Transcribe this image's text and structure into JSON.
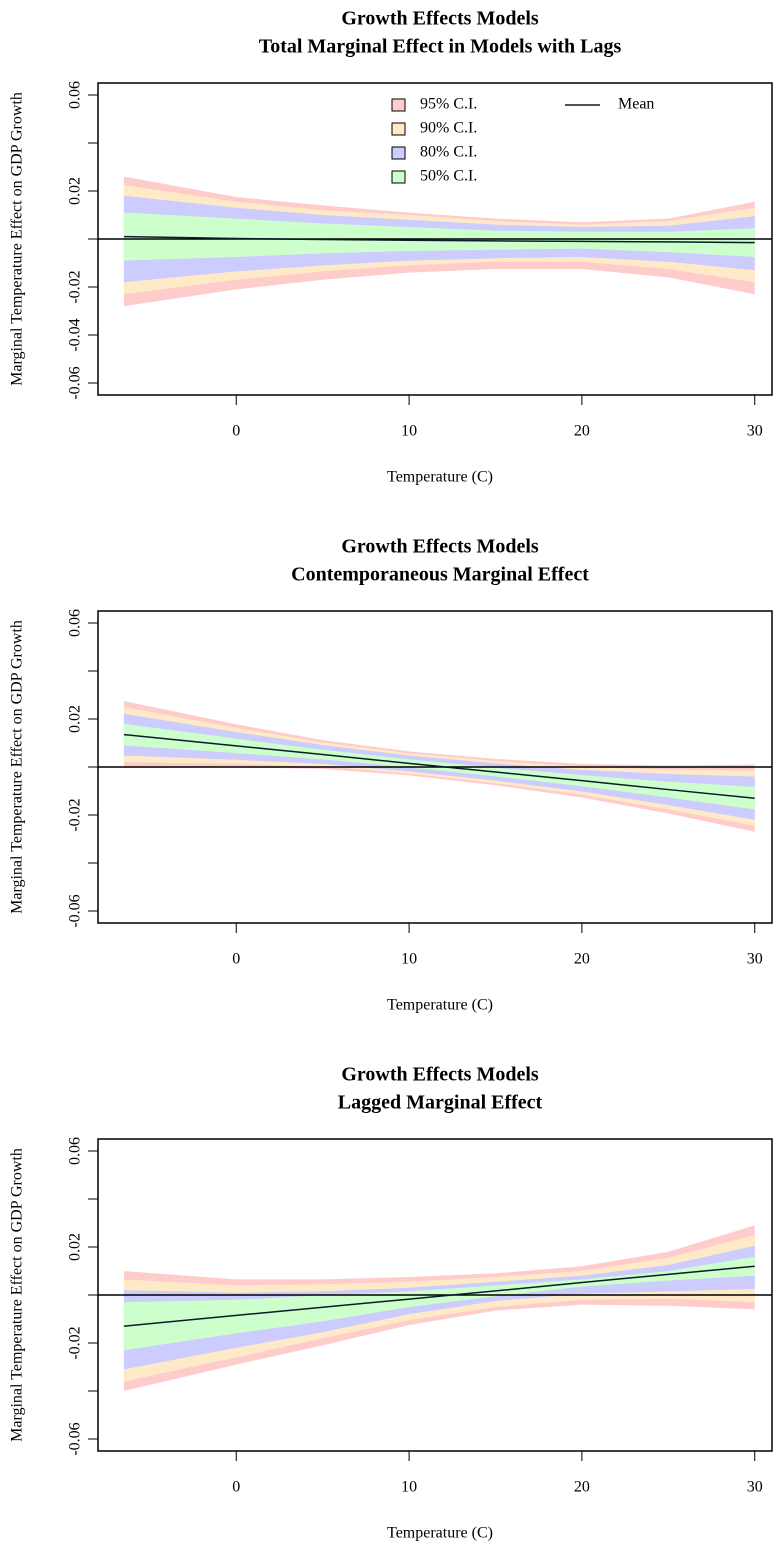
{
  "chart_data": [
    {
      "type": "band",
      "title": "Growth Effects Models",
      "subtitle": "Total Marginal Effect in Models with Lags",
      "xlabel": "Temperature (C)",
      "ylabel": "Marginal Temperature Effect on GDP Growth",
      "x": [
        -6.5,
        0,
        5,
        10,
        15,
        20,
        25,
        30
      ],
      "xlim": [
        -8,
        31
      ],
      "xticks": [
        0,
        10,
        20,
        30
      ],
      "ylim": [
        -0.065,
        0.065
      ],
      "yticks": [
        -0.06,
        -0.04,
        -0.02,
        {
          "value": 0,
          "label": null
        },
        0.02,
        {
          "value": 0.04,
          "label": null
        },
        0.06
      ],
      "hline": 0,
      "legend": "top",
      "series": [
        {
          "name": "95% C.I.",
          "color": "#ffcccc",
          "upper": [
            0.026,
            0.0175,
            0.014,
            0.011,
            0.0085,
            0.007,
            0.0085,
            0.0155
          ],
          "lower": [
            -0.028,
            -0.021,
            -0.017,
            -0.014,
            -0.0125,
            -0.0125,
            -0.016,
            -0.023
          ]
        },
        {
          "name": "90% C.I.",
          "color": "#ffeac8",
          "upper": [
            0.0225,
            0.0155,
            0.012,
            0.01,
            0.0075,
            0.006,
            0.0075,
            0.013
          ],
          "lower": [
            -0.023,
            -0.017,
            -0.0135,
            -0.011,
            -0.0095,
            -0.0095,
            -0.0125,
            -0.018
          ]
        },
        {
          "name": "80% C.I.",
          "color": "#ccccff",
          "upper": [
            0.018,
            0.013,
            0.01,
            0.008,
            0.006,
            0.005,
            0.0055,
            0.0095
          ],
          "lower": [
            -0.018,
            -0.0135,
            -0.011,
            -0.009,
            -0.008,
            -0.0075,
            -0.0095,
            -0.013
          ]
        },
        {
          "name": "50% C.I.",
          "color": "#ccffcc",
          "upper": [
            0.011,
            0.0085,
            0.0065,
            0.005,
            0.0035,
            0.003,
            0.003,
            0.0045
          ],
          "lower": [
            -0.009,
            -0.0075,
            -0.006,
            -0.005,
            -0.0045,
            -0.004,
            -0.0055,
            -0.0075
          ]
        },
        {
          "name": "Mean",
          "color": "#0d1b2a",
          "values": [
            0.001,
            0.0002,
            -0.0002,
            -0.0005,
            -0.0008,
            -0.001,
            -0.0012,
            -0.0015
          ]
        }
      ]
    },
    {
      "type": "band",
      "title": "Growth Effects Models",
      "subtitle": "Contemporaneous Marginal Effect",
      "xlabel": "Temperature (C)",
      "ylabel": "Marginal Temperature Effect on GDP Growth",
      "x": [
        -6.5,
        0,
        5,
        10,
        15,
        20,
        25,
        30
      ],
      "xlim": [
        -8,
        31
      ],
      "xticks": [
        0,
        10,
        20,
        30
      ],
      "ylim": [
        -0.065,
        0.065
      ],
      "yticks": [
        -0.06,
        {
          "value": -0.04,
          "label": null
        },
        -0.02,
        {
          "value": 0,
          "label": null
        },
        0.02,
        {
          "value": 0.04,
          "label": null
        },
        0.06
      ],
      "hline": 0,
      "series": [
        {
          "color": "#ffcccc",
          "upper": [
            0.0275,
            0.0178,
            0.0112,
            0.0065,
            0.0034,
            0.0013,
            0.0006,
            0.001
          ],
          "lower": [
            -0.0005,
            -0.0002,
            -0.0008,
            -0.0035,
            -0.0076,
            -0.0127,
            -0.0194,
            -0.027
          ]
        },
        {
          "color": "#ffeac8",
          "upper": [
            0.025,
            0.0163,
            0.0102,
            0.0057,
            0.0025,
            0.0001,
            -0.0011,
            -0.0015
          ],
          "lower": [
            0.002,
            0.0013,
            0.0002,
            -0.0027,
            -0.0067,
            -0.0115,
            -0.0177,
            -0.0245
          ]
        },
        {
          "color": "#ccccff",
          "upper": [
            0.0222,
            0.0146,
            0.0091,
            0.0048,
            0.0015,
            -0.0012,
            -0.0029,
            -0.004
          ],
          "lower": [
            0.0048,
            0.003,
            0.0013,
            -0.0018,
            -0.0057,
            -0.0102,
            -0.0159,
            -0.022
          ]
        },
        {
          "color": "#ccffcc",
          "upper": [
            0.018,
            0.0118,
            0.0072,
            0.0032,
            -0.0003,
            -0.0034,
            -0.0061,
            -0.0083
          ],
          "lower": [
            0.009,
            0.0058,
            0.0032,
            -0.0002,
            -0.0039,
            -0.008,
            -0.0127,
            -0.0177
          ]
        },
        {
          "color": "#0d1b2a",
          "values": [
            0.0135,
            0.0088,
            0.0052,
            0.0015,
            -0.0021,
            -0.0057,
            -0.0094,
            -0.013
          ]
        }
      ]
    },
    {
      "type": "band",
      "title": "Growth Effects Models",
      "subtitle": "Lagged Marginal Effect",
      "xlabel": "Temperature (C)",
      "ylabel": "Marginal Temperature Effect on GDP Growth",
      "x": [
        -6.5,
        0,
        5,
        10,
        15,
        20,
        25,
        30
      ],
      "xlim": [
        -8,
        31
      ],
      "xticks": [
        0,
        10,
        20,
        30
      ],
      "ylim": [
        -0.065,
        0.065
      ],
      "yticks": [
        -0.06,
        {
          "value": -0.04,
          "label": null
        },
        -0.02,
        {
          "value": 0,
          "label": null
        },
        0.02,
        {
          "value": 0.04,
          "label": null
        },
        0.06
      ],
      "hline": 0,
      "series": [
        {
          "color": "#ffcccc",
          "upper": [
            0.01,
            0.0065,
            0.0065,
            0.0075,
            0.009,
            0.012,
            0.018,
            0.029
          ],
          "lower": [
            -0.04,
            -0.029,
            -0.021,
            -0.0125,
            -0.0065,
            -0.004,
            -0.0045,
            -0.006
          ]
        },
        {
          "color": "#ffeac8",
          "upper": [
            0.0065,
            0.004,
            0.0045,
            0.0055,
            0.0075,
            0.01,
            0.0155,
            0.025
          ],
          "lower": [
            -0.036,
            -0.026,
            -0.018,
            -0.0105,
            -0.005,
            -0.002,
            -0.0015,
            -0.003
          ]
        },
        {
          "color": "#ccccff",
          "upper": [
            0.002,
            0.001,
            0.0015,
            0.003,
            0.0055,
            0.008,
            0.0125,
            0.0205
          ],
          "lower": [
            -0.031,
            -0.022,
            -0.0155,
            -0.008,
            -0.0025,
            0.0005,
            0.0015,
            0.0025
          ]
        },
        {
          "color": "#ccffcc",
          "upper": [
            -0.003,
            -0.002,
            0,
            0.0015,
            0.004,
            0.0065,
            0.01,
            0.016
          ],
          "lower": [
            -0.023,
            -0.016,
            -0.011,
            -0.005,
            -0.0005,
            0.0035,
            0.006,
            0.008
          ]
        },
        {
          "color": "#0d1b2a",
          "values": [
            -0.013,
            -0.0085,
            -0.0051,
            -0.0017,
            0.0017,
            0.0052,
            0.0086,
            0.012
          ]
        }
      ]
    }
  ]
}
